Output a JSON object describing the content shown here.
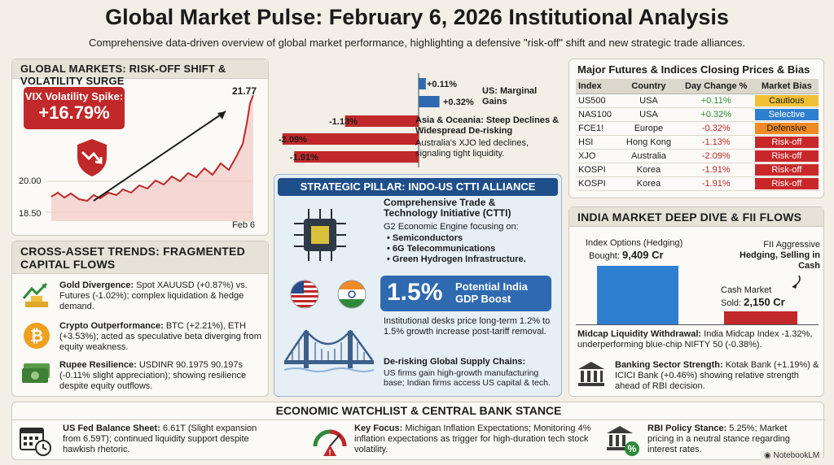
{
  "header": {
    "title": "Global Market Pulse: February 6, 2026 Institutional Analysis",
    "subtitle": "Comprehensive data-driven overview of global market performance, highlighting a defensive \"risk-off\" shift and new strategic trade alliances."
  },
  "global_markets": {
    "heading": "GLOBAL MARKETS: RISK-OFF SHIFT & VOLATILITY SURGE",
    "vix_label": "VIX Volatility Spike:",
    "vix_value": "+16.79%",
    "vix_peak": "21.77",
    "tick_20": "20.00",
    "tick_1850": "18.50",
    "x_label": "Feb 6",
    "bars": [
      {
        "label": "+0.11%",
        "value": 0.11
      },
      {
        "label": "+0.32%",
        "value": 0.32
      },
      {
        "label": "-1.13%",
        "value": -1.13
      },
      {
        "label": "-2.09%",
        "value": -2.09
      },
      {
        "label": "-1.91%",
        "value": -1.91
      }
    ],
    "us_note": "US: Marginal Gains",
    "asia_note_title": "Asia & Oceania: Steep Declines & Widespread De-risking",
    "asia_note_body": "Australia's XJO led declines, signaling tight liquidity."
  },
  "futures": {
    "heading": "Major Futures & Indices Closing Prices & Bias",
    "columns": [
      "Index",
      "Country",
      "Day Change %",
      "Market Bias"
    ],
    "rows": [
      {
        "index": "US500",
        "country": "USA",
        "change": "+0.11%",
        "bias": "Cautious"
      },
      {
        "index": "NAS100",
        "country": "USA",
        "change": "+0.32%",
        "bias": "Selective"
      },
      {
        "index": "FCE1!",
        "country": "Europe",
        "change": "-0.32%",
        "bias": "Defensive"
      },
      {
        "index": "HSI",
        "country": "Hong Kong",
        "change": "-1.13%",
        "bias": "Risk-off"
      },
      {
        "index": "XJO",
        "country": "Australia",
        "change": "-2.09%",
        "bias": "Risk-off"
      },
      {
        "index": "KOSPI",
        "country": "Korea",
        "change": "-1.91%",
        "bias": "Risk-off"
      },
      {
        "index": "KOSPI",
        "country": "Korea",
        "change": "-1.91%",
        "bias": "Risk-off"
      }
    ]
  },
  "cross_asset": {
    "heading": "CROSS-ASSET TRENDS: FRAGMENTED CAPITAL FLOWS",
    "items": [
      {
        "title": "Gold Divergence:",
        "body": "Spot XAUUSD (+0.87%) vs. Futures (-1.02%); complex liquidation & hedge demand."
      },
      {
        "title": "Crypto Outperformance:",
        "body": "BTC (+2.21%), ETH (+3.53%); acted as speculative beta diverging from equity weakness."
      },
      {
        "title": "Rupee Resilience:",
        "body": "USDINR 90.1975 90.197s (-0.11% slight appreciation); showing resilience despite equity outflows."
      }
    ]
  },
  "pillar": {
    "heading": "STRATEGIC PILLAR: INDO-US CTTI ALLIANCE",
    "ctti_title": "Comprehensive Trade & Technology Initiative (CTTI)",
    "ctti_sub": "G2 Economic Engine focusing on:",
    "focus": [
      "Semiconductors",
      "6G Telecommunications",
      "Green Hydrogen Infrastructure."
    ],
    "gdp_value": "1.5%",
    "gdp_label": "Potential India GDP Boost",
    "gdp_note": "Institutional desks price long-term 1.2% to 1.5% growth increase post-tariff removal.",
    "supply_title": "De-risking Global Supply Chains:",
    "supply_body": "US firms gain high-growth manufacturing base; Indian firms access US capital & tech."
  },
  "india": {
    "heading": "INDIA MARKET DEEP DIVE & FII FLOWS",
    "options_label": "Index Options (Hedging)",
    "options_bought_label": "Bought:",
    "options_value": "9,409 Cr",
    "options_amount": 9409,
    "cash_label": "Cash Market",
    "cash_sold_label": "Sold:",
    "cash_value": "2,150 Cr",
    "cash_amount": 2150,
    "fii_pre": "FII Aggressive",
    "fii_bold": "Hedging, Selling in Cash",
    "midcap_title": "Midcap Liquidity Withdrawal:",
    "midcap_body": "India Midcap Index -1.32%, underperforming blue-chip NIFTY 50 (-0.38%).",
    "banking_title": "Banking Sector Strength:",
    "banking_body": "Kotak Bank (+1.19%) & ICICI Bank (+0.46%) showing relative strength ahead of RBI decision."
  },
  "watchlist": {
    "heading": "ECONOMIC WATCHLIST & CENTRAL BANK STANCE",
    "items": [
      {
        "title": "US Fed Balance Sheet:",
        "body": "6.61T (Slight expansion from 6.59T); continued liquidity support despite hawkish rhetoric."
      },
      {
        "title": "Key Focus:",
        "body": "Michigan Inflation Expectations; Monitoring 4% inflation expectations as trigger for high-duration tech stock volatility."
      },
      {
        "title": "RBI Policy Stance:",
        "body": "5.25%; Market pricing in a neutral stance regarding interest rates."
      }
    ]
  },
  "footer": {
    "brand": "NotebookLM"
  },
  "colors": {
    "accent_red": "#c0282a",
    "accent_blue": "#2f6ab0",
    "cautious": "#f2c037",
    "selective": "#2f7fd0",
    "defensive": "#f08a24",
    "riskoff": "#c8282a"
  }
}
